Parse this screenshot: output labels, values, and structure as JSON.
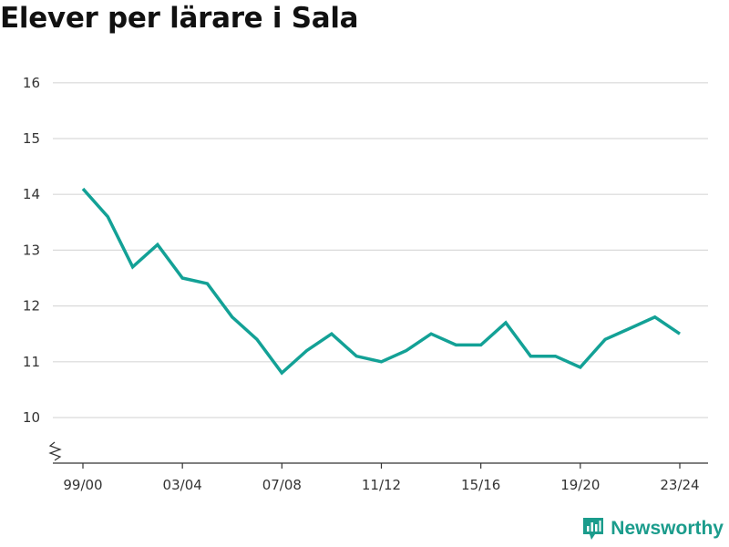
{
  "title": "Elever per lärare i Sala",
  "brand": {
    "name": "Newsworthy"
  },
  "colors": {
    "line": "#13a196",
    "grid": "#d9d9d9",
    "axis": "#333333",
    "brand": "#1b9c8c"
  },
  "chart_data": {
    "type": "line",
    "title": "Elever per lärare i Sala",
    "xlabel": "",
    "ylabel": "",
    "ylim": [
      9.2,
      16.3
    ],
    "y_ticks": [
      10,
      11,
      12,
      13,
      14,
      15,
      16
    ],
    "y_axis_break": true,
    "grid": true,
    "x_tick_labels": [
      "99/00",
      "03/04",
      "07/08",
      "11/12",
      "15/16",
      "19/20",
      "23/24"
    ],
    "categories": [
      "99/00",
      "00/01",
      "01/02",
      "02/03",
      "03/04",
      "04/05",
      "05/06",
      "06/07",
      "07/08",
      "08/09",
      "09/10",
      "10/11",
      "11/12",
      "12/13",
      "13/14",
      "14/15",
      "15/16",
      "16/17",
      "17/18",
      "18/19",
      "19/20",
      "20/21",
      "21/22",
      "22/23",
      "23/24"
    ],
    "series": [
      {
        "values": [
          14.1,
          13.6,
          12.7,
          13.1,
          12.5,
          12.4,
          11.8,
          11.4,
          10.8,
          11.2,
          11.5,
          11.1,
          11.0,
          11.2,
          11.5,
          11.3,
          11.3,
          11.7,
          11.1,
          11.1,
          10.9,
          11.4,
          11.6,
          11.8,
          11.5
        ]
      }
    ]
  }
}
